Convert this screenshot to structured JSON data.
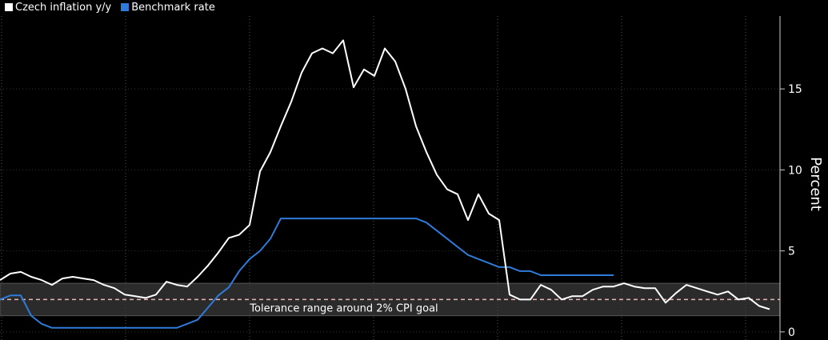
{
  "chart_data": {
    "type": "line",
    "title": "",
    "xlabel": "",
    "ylabel": "Percent",
    "ylim": [
      -0.5,
      19.5
    ],
    "yticks": [
      0,
      5,
      10,
      15
    ],
    "grid": "vertical-dotted",
    "legend_position": "top-left",
    "annotation": {
      "text": "Tolerance range around 2% CPI goal",
      "band": [
        1,
        3
      ],
      "target": 2
    },
    "series": [
      {
        "name": "Czech inflation y/y",
        "color": "#ffffff",
        "values": [
          3.2,
          3.6,
          3.7,
          3.4,
          3.2,
          2.9,
          3.3,
          3.4,
          3.3,
          3.2,
          2.9,
          2.7,
          2.3,
          2.2,
          2.1,
          2.3,
          3.1,
          2.9,
          2.8,
          3.4,
          4.1,
          4.9,
          5.8,
          6.0,
          6.6,
          9.9,
          11.1,
          12.7,
          14.2,
          16.0,
          17.2,
          17.5,
          17.2,
          18.0,
          15.1,
          16.2,
          15.8,
          17.5,
          16.7,
          15.0,
          12.7,
          11.1,
          9.7,
          8.8,
          8.5,
          6.9,
          8.5,
          7.3,
          6.9,
          2.3,
          2.0,
          2.0,
          2.9,
          2.6,
          2.0,
          2.2,
          2.2,
          2.6,
          2.8,
          2.8,
          3.0,
          2.8,
          2.7,
          2.7,
          1.8,
          2.4,
          2.9,
          2.7,
          2.5,
          2.3,
          2.5,
          2.0,
          2.1,
          1.6,
          1.4
        ]
      },
      {
        "name": "Benchmark rate",
        "color": "#2f7bd9",
        "values": [
          2.0,
          2.25,
          2.25,
          1.0,
          0.5,
          0.25,
          0.25,
          0.25,
          0.25,
          0.25,
          0.25,
          0.25,
          0.25,
          0.25,
          0.25,
          0.25,
          0.25,
          0.25,
          0.5,
          0.75,
          1.5,
          2.25,
          2.75,
          3.75,
          4.5,
          5.0,
          5.75,
          7.0,
          7.0,
          7.0,
          7.0,
          7.0,
          7.0,
          7.0,
          7.0,
          7.0,
          7.0,
          7.0,
          7.0,
          7.0,
          7.0,
          6.75,
          6.25,
          5.75,
          5.25,
          4.75,
          4.5,
          4.25,
          4.0,
          4.0,
          3.75,
          3.75,
          3.5,
          3.5,
          3.5,
          3.5,
          3.5,
          3.5,
          3.5,
          3.5
        ]
      }
    ]
  }
}
